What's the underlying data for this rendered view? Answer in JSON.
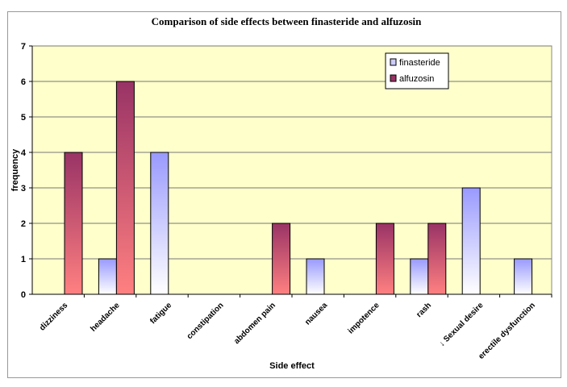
{
  "chart_data": {
    "type": "bar",
    "title": "Comparison of side effects between finasteride and alfuzosin",
    "xlabel": "Side effect",
    "ylabel": "frequency",
    "ylim": [
      0,
      7
    ],
    "yticks": [
      "0",
      "1",
      "2",
      "3",
      "4",
      "5",
      "6",
      "7"
    ],
    "grid": true,
    "legend_position": "top-right",
    "categories": [
      "dizziness",
      "headache",
      "fatigue",
      "constipation",
      "abdomen pain",
      "nausea",
      "impotence",
      "rash",
      "↓ Sexual desire",
      "erectile dysfunction"
    ],
    "series": [
      {
        "name": "finasteride",
        "values": [
          0,
          1,
          4,
          0,
          0,
          1,
          0,
          1,
          3,
          1
        ],
        "color_top": "#9999ff",
        "color_bottom": "#ffffff"
      },
      {
        "name": "alfuzosin",
        "values": [
          4,
          6,
          0,
          0,
          2,
          0,
          2,
          2,
          0,
          0
        ],
        "color_top": "#993366",
        "color_bottom": "#ff8080"
      }
    ],
    "plot_background": "#ffffcc"
  }
}
